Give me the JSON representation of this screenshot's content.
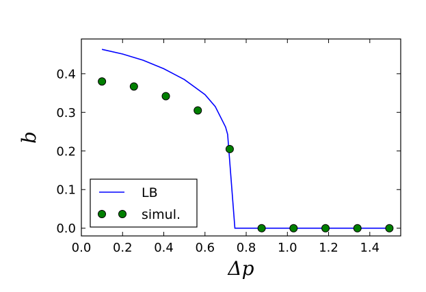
{
  "chart_data": {
    "type": "line",
    "xlabel": "Δp",
    "ylabel": "b",
    "xlim": [
      0.0,
      1.55
    ],
    "ylim": [
      -0.02,
      0.49
    ],
    "xticks": [
      "0.0",
      "0.2",
      "0.4",
      "0.6",
      "0.8",
      "1.0",
      "1.2",
      "1.4"
    ],
    "yticks": [
      "0.0",
      "0.1",
      "0.2",
      "0.3",
      "0.4"
    ],
    "legend_position": "lower-left",
    "series": [
      {
        "name": "LB",
        "kind": "line",
        "color": "#0000ff",
        "x": [
          0.1,
          0.2,
          0.3,
          0.4,
          0.5,
          0.6,
          0.65,
          0.7,
          0.71,
          0.745,
          0.8,
          1.0,
          1.2,
          1.4,
          1.5
        ],
        "y": [
          0.463,
          0.451,
          0.435,
          0.413,
          0.385,
          0.346,
          0.315,
          0.262,
          0.243,
          0.0,
          0.0,
          0.0,
          0.0,
          0.0,
          0.0
        ]
      },
      {
        "name": "simul.",
        "kind": "scatter",
        "color": "#007f00",
        "x": [
          0.1,
          0.255,
          0.41,
          0.565,
          0.72,
          0.875,
          1.03,
          1.185,
          1.34,
          1.495
        ],
        "y": [
          0.38,
          0.367,
          0.342,
          0.305,
          0.205,
          0.0,
          0.0,
          0.0,
          0.0,
          0.0
        ]
      }
    ]
  }
}
